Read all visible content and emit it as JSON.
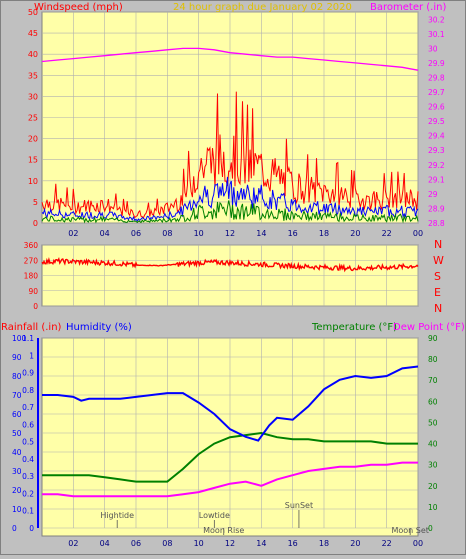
{
  "header": {
    "left_label": "Windspeed (mph)",
    "title": "24 hour graph due   January 02 2020",
    "right_label": "Barometer (.in)"
  },
  "bottom_header": {
    "rainfall_label": "Rainfall (.in)",
    "humidity_label": "Humidity (%)",
    "temperature_label": "Temperature (°F)",
    "dewpoint_label": "Dew Point (°F)"
  },
  "compass": [
    "N",
    "W",
    "S",
    "E",
    "N"
  ],
  "colors": {
    "panel": "#ffffa8",
    "frame": "#c0c0c0",
    "wind_gust": "#ff0000",
    "wind_avg": "#0000ff",
    "wind_low": "#008000",
    "barometer": "#ff00ff",
    "direction": "#ff0000",
    "humidity": "#0000ff",
    "temperature": "#008000",
    "dewpoint": "#ff00ff",
    "rain_axis": "#0000ff",
    "events": "#555555"
  },
  "chart_data": [
    {
      "type": "line",
      "panel": "wind-barometer",
      "x_tick_labels": [
        "02",
        "04",
        "06",
        "08",
        "10",
        "12",
        "14",
        "16",
        "18",
        "20",
        "22",
        "00"
      ],
      "xlim": [
        0,
        24
      ],
      "y_left": {
        "label": "Windspeed (mph)",
        "ylim": [
          0,
          50
        ],
        "ticks": [
          0,
          5,
          10,
          15,
          20,
          25,
          30,
          35,
          40,
          45,
          50
        ]
      },
      "y_right": {
        "label": "Barometer (.in)",
        "ylim": [
          28.8,
          30.25
        ],
        "ticks": [
          "28.8",
          "28.9",
          "29",
          "29.1",
          "29.2",
          "29.3",
          "29.4",
          "29.5",
          "29.6",
          "29.7",
          "29.8",
          "29.9",
          "30",
          "30.1",
          "30.2"
        ]
      },
      "wind_profile": {
        "hours": [
          0,
          1,
          2,
          3,
          4,
          5,
          6,
          7,
          8,
          9,
          10,
          11,
          12,
          13,
          14,
          15,
          16,
          17,
          18,
          19,
          20,
          21,
          22,
          23,
          24
        ],
        "gust_mph": [
          5,
          4.5,
          4,
          4,
          4.5,
          3,
          2,
          2.5,
          3.5,
          6,
          13,
          15,
          16,
          14,
          13,
          11,
          9,
          8,
          7.5,
          7,
          6,
          5.5,
          6,
          6,
          5.5
        ]
      },
      "series": [
        {
          "name": "Barometer",
          "axis": "right",
          "x": [
            0,
            1,
            2,
            3,
            4,
            5,
            6,
            7,
            8,
            9,
            10,
            11,
            12,
            13,
            14,
            15,
            16,
            17,
            18,
            19,
            20,
            21,
            22,
            23,
            23.5,
            24
          ],
          "y": [
            29.91,
            29.92,
            29.93,
            29.94,
            29.95,
            29.96,
            29.97,
            29.98,
            29.99,
            30.0,
            30.0,
            29.99,
            29.97,
            29.96,
            29.95,
            29.94,
            29.94,
            29.93,
            29.92,
            29.91,
            29.9,
            29.89,
            29.88,
            29.87,
            29.86,
            29.85
          ]
        }
      ]
    },
    {
      "type": "line",
      "panel": "wind-direction",
      "xlim": [
        0,
        24
      ],
      "ylim": [
        0,
        360
      ],
      "y_ticks": [
        "0",
        "90",
        "180",
        "270",
        "360"
      ],
      "series": [
        {
          "name": "Wind direction",
          "x": [
            0,
            1,
            2,
            3,
            4,
            5,
            6,
            7,
            7.5,
            8,
            9,
            10,
            11,
            12,
            13,
            14,
            15,
            16,
            17,
            18,
            19,
            20,
            21,
            22,
            23,
            24
          ],
          "y": [
            260,
            265,
            262,
            258,
            255,
            250,
            240,
            240,
            238,
            242,
            248,
            255,
            258,
            255,
            250,
            246,
            240,
            236,
            232,
            228,
            225,
            222,
            225,
            228,
            232,
            238
          ]
        }
      ]
    },
    {
      "type": "line",
      "panel": "humidity-temperature",
      "xlim": [
        0,
        24
      ],
      "x_tick_labels": [
        "02",
        "04",
        "06",
        "08",
        "10",
        "12",
        "14",
        "16",
        "18",
        "20",
        "22",
        "00"
      ],
      "y_rain": {
        "label": "Rainfall (.in)",
        "ylim": [
          0,
          1.1
        ],
        "ticks": [
          "0",
          "0.1",
          "0.2",
          "0.3",
          "0.4",
          "0.5",
          "0.6",
          "0.7",
          "0.8",
          "0.9",
          "1",
          "1.1"
        ]
      },
      "y_humidity": {
        "label": "Humidity (%)",
        "ylim": [
          0,
          100
        ],
        "ticks": [
          "0",
          "10",
          "20",
          "30",
          "40",
          "50",
          "60",
          "70",
          "80",
          "90",
          "100"
        ]
      },
      "y_temp": {
        "label": "Temperature (°F)",
        "ylim": [
          0,
          90
        ],
        "ticks": [
          "0",
          "10",
          "20",
          "30",
          "40",
          "50",
          "60",
          "70",
          "80",
          "90"
        ]
      },
      "series": [
        {
          "name": "Humidity",
          "axis": "humidity",
          "x": [
            0,
            1,
            2,
            2.5,
            3,
            4,
            5,
            6,
            7,
            8,
            9,
            10,
            11,
            12,
            13,
            13.8,
            14.5,
            15,
            16,
            17,
            18,
            19,
            20,
            21,
            22,
            23,
            24
          ],
          "y": [
            70,
            70,
            69,
            67,
            68,
            68,
            68,
            69,
            70,
            71,
            71,
            66,
            60,
            52,
            48,
            46,
            54,
            58,
            57,
            64,
            73,
            78,
            80,
            79,
            80,
            84,
            85
          ]
        },
        {
          "name": "Temperature",
          "axis": "temp",
          "x": [
            0,
            1,
            2,
            3,
            4,
            5,
            6,
            7,
            8,
            9,
            10,
            11,
            12,
            13,
            14,
            15,
            16,
            17,
            18,
            19,
            20,
            21,
            22,
            23,
            24
          ],
          "y": [
            25,
            25,
            25,
            25,
            24,
            23,
            22,
            22,
            22,
            28,
            35,
            40,
            43,
            44,
            45,
            43,
            42,
            42,
            41,
            41,
            41,
            41,
            40,
            40,
            40
          ]
        },
        {
          "name": "Dew Point",
          "axis": "temp",
          "x": [
            0,
            1,
            2,
            3,
            4,
            5,
            6,
            7,
            8,
            9,
            10,
            11,
            12,
            13,
            14,
            15,
            16,
            17,
            18,
            19,
            20,
            21,
            22,
            23,
            24
          ],
          "y": [
            16,
            16,
            15,
            15,
            15,
            15,
            15,
            15,
            15,
            16,
            17,
            19,
            21,
            22,
            20,
            23,
            25,
            27,
            28,
            29,
            29,
            30,
            30,
            31,
            31
          ]
        }
      ],
      "events": [
        {
          "label": "Hightide",
          "hour": 4.8,
          "row": "top"
        },
        {
          "label": "Lowtide",
          "hour": 11,
          "row": "top"
        },
        {
          "label": "SunSet",
          "hour": 16.4,
          "row": "upper"
        },
        {
          "label": "Moon Rise",
          "hour": 11.6,
          "row": "bottom"
        },
        {
          "label": "Moon Set",
          "hour": 23.5,
          "row": "bottom"
        }
      ]
    }
  ]
}
